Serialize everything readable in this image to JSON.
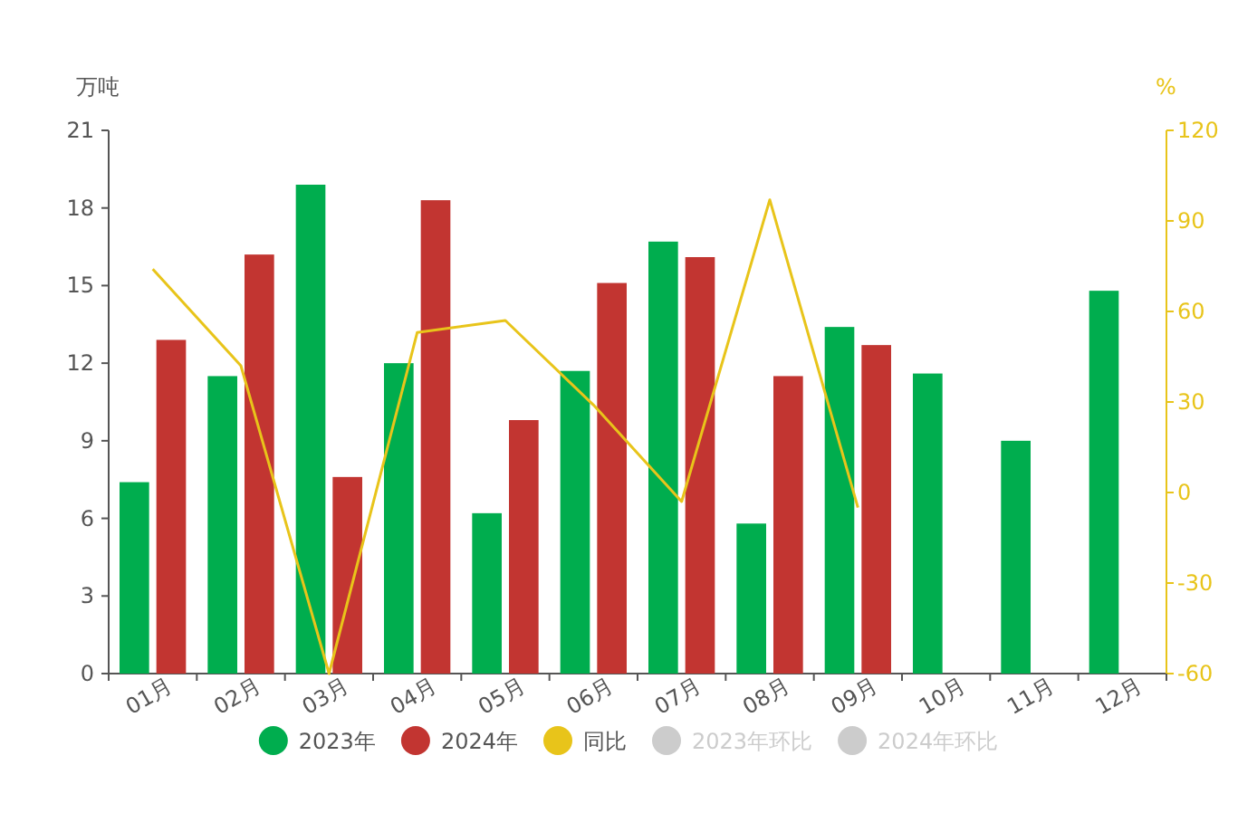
{
  "chart_data": {
    "type": "bar",
    "categories": [
      "01月",
      "02月",
      "03月",
      "04月",
      "05月",
      "06月",
      "07月",
      "08月",
      "09月",
      "10月",
      "11月",
      "12月"
    ],
    "ylabel": "万吨",
    "y2label": "%",
    "ylim": [
      0,
      21
    ],
    "yticks": [
      0,
      3,
      6,
      9,
      12,
      15,
      18,
      21
    ],
    "y2lim": [
      -60,
      120
    ],
    "y2ticks": [
      -60,
      -30,
      0,
      30,
      60,
      90,
      120
    ],
    "legend": "bottom",
    "grid": false,
    "marker": "none",
    "series": [
      {
        "name": "2023年",
        "color": "#00ad4e",
        "values": [
          7.4,
          11.5,
          18.9,
          12.0,
          6.2,
          11.7,
          16.7,
          5.8,
          13.4,
          11.6,
          9.0,
          14.8
        ]
      },
      {
        "name": "2024年",
        "color": "#c23531",
        "values": [
          12.9,
          16.2,
          7.6,
          18.3,
          9.8,
          15.1,
          16.1,
          11.5,
          12.7,
          null,
          null,
          null
        ]
      },
      {
        "name": "同比",
        "type": "line",
        "axis": "y2",
        "color": "#e8c41a",
        "values": [
          74,
          42,
          -60,
          53,
          57,
          29,
          -3,
          97,
          -5,
          null,
          null,
          null
        ]
      },
      {
        "name": "2023年环比",
        "type": "line",
        "axis": "y2",
        "color": "#cccccc",
        "values": [
          null,
          null,
          null,
          null,
          null,
          null,
          null,
          null,
          null,
          null,
          null,
          null
        ]
      },
      {
        "name": "2024年环比",
        "type": "line",
        "axis": "y2",
        "color": "#cccccc",
        "values": [
          null,
          null,
          null,
          null,
          null,
          null,
          null,
          null,
          null,
          null,
          null,
          null
        ]
      }
    ]
  }
}
